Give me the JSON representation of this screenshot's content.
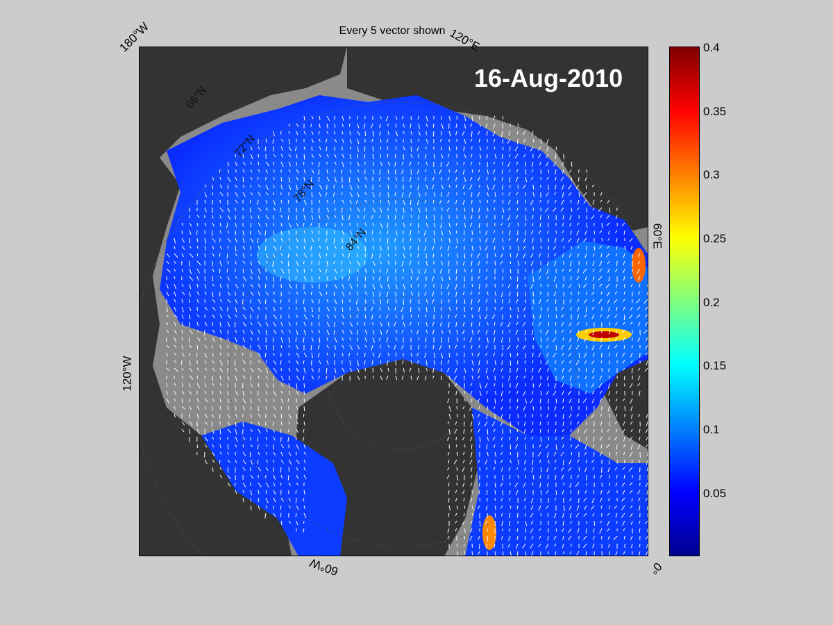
{
  "figure": {
    "title": "Every 5 vector shown",
    "date": "16-Aug-2010"
  },
  "map": {
    "projection": "polar stereographic (north)",
    "longitude_labels": [
      "180°W",
      "120°E",
      "60°E",
      "0°",
      "60°W",
      "120°W"
    ],
    "latitude_labels": [
      "66°N",
      "72°N",
      "78°N",
      "84°N"
    ],
    "land_color": "#333333",
    "ocean_color": "#8a8a8a",
    "vector_color": "#ffffff"
  },
  "colorbar": {
    "colormap": "jet",
    "range": [
      0,
      0.4
    ],
    "ticks": [
      "0.4",
      "0.35",
      "0.3",
      "0.25",
      "0.2",
      "0.15",
      "0.1",
      "0.05"
    ]
  }
}
